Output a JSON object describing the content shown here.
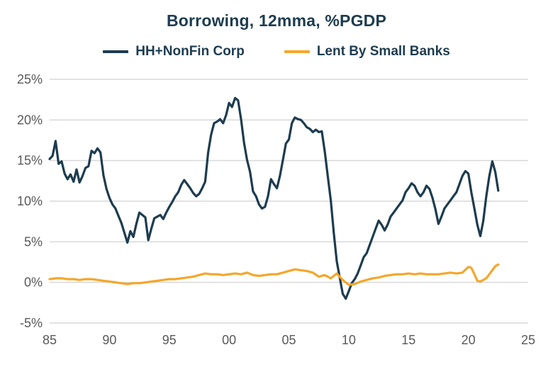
{
  "chart_data": {
    "type": "line",
    "title": "Borrowing, 12mma, %PGDP",
    "xlabel": "",
    "ylabel": "",
    "xlim": [
      1985,
      2025
    ],
    "ylim": [
      -5,
      25
    ],
    "grid": "horizontal",
    "legend_position": "top",
    "colors": {
      "hh": "#1d3c4f",
      "small_banks": "#f5a62a",
      "grid": "#d9d9d9",
      "tick_text": "#595959",
      "title_text": "#1d3c4f"
    },
    "x_ticks": [
      {
        "value": 1985,
        "label": "85"
      },
      {
        "value": 1990,
        "label": "90"
      },
      {
        "value": 1995,
        "label": "95"
      },
      {
        "value": 2000,
        "label": "00"
      },
      {
        "value": 2005,
        "label": "05"
      },
      {
        "value": 2010,
        "label": "10"
      },
      {
        "value": 2015,
        "label": "15"
      },
      {
        "value": 2020,
        "label": "20"
      },
      {
        "value": 2025,
        "label": "25"
      }
    ],
    "y_ticks": [
      {
        "value": -5,
        "label": "-5%"
      },
      {
        "value": 0,
        "label": "0%"
      },
      {
        "value": 5,
        "label": "5%"
      },
      {
        "value": 10,
        "label": "10%"
      },
      {
        "value": 15,
        "label": "15%"
      },
      {
        "value": 20,
        "label": "20%"
      },
      {
        "value": 25,
        "label": "25%"
      }
    ],
    "series": [
      {
        "name": "HH+NonFin Corp",
        "color_key": "hh",
        "points": [
          [
            1985.0,
            15.2
          ],
          [
            1985.25,
            15.6
          ],
          [
            1985.5,
            17.4
          ],
          [
            1985.75,
            14.6
          ],
          [
            1986.0,
            14.9
          ],
          [
            1986.25,
            13.4
          ],
          [
            1986.5,
            12.7
          ],
          [
            1986.75,
            13.3
          ],
          [
            1987.0,
            12.4
          ],
          [
            1987.25,
            13.9
          ],
          [
            1987.5,
            12.3
          ],
          [
            1987.75,
            13.1
          ],
          [
            1988.0,
            14.1
          ],
          [
            1988.25,
            14.3
          ],
          [
            1988.5,
            16.2
          ],
          [
            1988.75,
            15.9
          ],
          [
            1989.0,
            16.5
          ],
          [
            1989.25,
            16.0
          ],
          [
            1989.5,
            13.2
          ],
          [
            1989.75,
            11.5
          ],
          [
            1990.0,
            10.4
          ],
          [
            1990.25,
            9.6
          ],
          [
            1990.5,
            9.1
          ],
          [
            1990.75,
            8.2
          ],
          [
            1991.0,
            7.3
          ],
          [
            1991.25,
            6.1
          ],
          [
            1991.5,
            4.9
          ],
          [
            1991.75,
            6.3
          ],
          [
            1992.0,
            5.6
          ],
          [
            1992.25,
            7.2
          ],
          [
            1992.5,
            8.6
          ],
          [
            1992.75,
            8.3
          ],
          [
            1993.0,
            8.0
          ],
          [
            1993.25,
            5.2
          ],
          [
            1993.5,
            6.6
          ],
          [
            1993.75,
            7.9
          ],
          [
            1994.0,
            8.1
          ],
          [
            1994.25,
            8.3
          ],
          [
            1994.5,
            7.8
          ],
          [
            1994.75,
            8.6
          ],
          [
            1995.0,
            9.3
          ],
          [
            1995.25,
            9.9
          ],
          [
            1995.5,
            10.6
          ],
          [
            1995.75,
            11.1
          ],
          [
            1996.0,
            12.0
          ],
          [
            1996.25,
            12.6
          ],
          [
            1996.5,
            12.1
          ],
          [
            1996.75,
            11.6
          ],
          [
            1997.0,
            11.0
          ],
          [
            1997.25,
            10.6
          ],
          [
            1997.5,
            10.9
          ],
          [
            1997.75,
            11.6
          ],
          [
            1998.0,
            12.4
          ],
          [
            1998.25,
            16.0
          ],
          [
            1998.5,
            18.2
          ],
          [
            1998.75,
            19.6
          ],
          [
            1999.0,
            19.8
          ],
          [
            1999.25,
            20.1
          ],
          [
            1999.5,
            19.6
          ],
          [
            1999.75,
            20.6
          ],
          [
            2000.0,
            22.1
          ],
          [
            2000.25,
            21.6
          ],
          [
            2000.5,
            22.7
          ],
          [
            2000.75,
            22.4
          ],
          [
            2001.0,
            20.1
          ],
          [
            2001.25,
            17.2
          ],
          [
            2001.5,
            15.1
          ],
          [
            2001.75,
            13.6
          ],
          [
            2002.0,
            11.2
          ],
          [
            2002.25,
            10.6
          ],
          [
            2002.5,
            9.6
          ],
          [
            2002.75,
            9.1
          ],
          [
            2003.0,
            9.3
          ],
          [
            2003.25,
            10.6
          ],
          [
            2003.5,
            12.7
          ],
          [
            2003.75,
            12.1
          ],
          [
            2004.0,
            11.6
          ],
          [
            2004.25,
            13.1
          ],
          [
            2004.5,
            15.1
          ],
          [
            2004.75,
            17.1
          ],
          [
            2005.0,
            17.6
          ],
          [
            2005.25,
            19.6
          ],
          [
            2005.5,
            20.3
          ],
          [
            2005.75,
            20.1
          ],
          [
            2006.0,
            20.0
          ],
          [
            2006.25,
            19.6
          ],
          [
            2006.5,
            19.1
          ],
          [
            2006.75,
            18.9
          ],
          [
            2007.0,
            18.5
          ],
          [
            2007.25,
            18.8
          ],
          [
            2007.5,
            18.5
          ],
          [
            2007.75,
            18.6
          ],
          [
            2008.0,
            16.1
          ],
          [
            2008.25,
            13.1
          ],
          [
            2008.5,
            10.1
          ],
          [
            2008.75,
            6.1
          ],
          [
            2009.0,
            2.6
          ],
          [
            2009.25,
            0.6
          ],
          [
            2009.5,
            -1.4
          ],
          [
            2009.75,
            -2.0
          ],
          [
            2010.0,
            -1.1
          ],
          [
            2010.25,
            -0.1
          ],
          [
            2010.5,
            0.4
          ],
          [
            2010.75,
            1.1
          ],
          [
            2011.0,
            2.1
          ],
          [
            2011.25,
            3.1
          ],
          [
            2011.5,
            3.6
          ],
          [
            2011.75,
            4.6
          ],
          [
            2012.0,
            5.6
          ],
          [
            2012.25,
            6.6
          ],
          [
            2012.5,
            7.6
          ],
          [
            2012.75,
            7.1
          ],
          [
            2013.0,
            6.4
          ],
          [
            2013.25,
            7.1
          ],
          [
            2013.5,
            8.1
          ],
          [
            2013.75,
            8.6
          ],
          [
            2014.0,
            9.1
          ],
          [
            2014.25,
            9.6
          ],
          [
            2014.5,
            10.1
          ],
          [
            2014.75,
            11.1
          ],
          [
            2015.0,
            11.6
          ],
          [
            2015.25,
            12.2
          ],
          [
            2015.5,
            11.9
          ],
          [
            2015.75,
            11.1
          ],
          [
            2016.0,
            10.6
          ],
          [
            2016.25,
            11.1
          ],
          [
            2016.5,
            11.9
          ],
          [
            2016.75,
            11.5
          ],
          [
            2017.0,
            10.4
          ],
          [
            2017.25,
            9.0
          ],
          [
            2017.5,
            7.2
          ],
          [
            2017.75,
            8.1
          ],
          [
            2018.0,
            9.1
          ],
          [
            2018.25,
            9.6
          ],
          [
            2018.5,
            10.1
          ],
          [
            2018.75,
            10.6
          ],
          [
            2019.0,
            11.1
          ],
          [
            2019.25,
            12.1
          ],
          [
            2019.5,
            13.1
          ],
          [
            2019.75,
            13.7
          ],
          [
            2020.0,
            13.4
          ],
          [
            2020.25,
            11.1
          ],
          [
            2020.5,
            9.1
          ],
          [
            2020.75,
            7.1
          ],
          [
            2021.0,
            5.7
          ],
          [
            2021.25,
            7.6
          ],
          [
            2021.5,
            10.6
          ],
          [
            2021.75,
            13.1
          ],
          [
            2022.0,
            14.9
          ],
          [
            2022.25,
            13.6
          ],
          [
            2022.5,
            11.3
          ]
        ]
      },
      {
        "name": "Lent By Small Banks",
        "color_key": "small_banks",
        "points": [
          [
            1985.0,
            0.4
          ],
          [
            1985.5,
            0.5
          ],
          [
            1986.0,
            0.5
          ],
          [
            1986.5,
            0.4
          ],
          [
            1987.0,
            0.4
          ],
          [
            1987.5,
            0.3
          ],
          [
            1988.0,
            0.4
          ],
          [
            1988.5,
            0.4
          ],
          [
            1989.0,
            0.3
          ],
          [
            1989.5,
            0.2
          ],
          [
            1990.0,
            0.1
          ],
          [
            1990.5,
            0.0
          ],
          [
            1991.0,
            -0.1
          ],
          [
            1991.5,
            -0.2
          ],
          [
            1992.0,
            -0.1
          ],
          [
            1992.5,
            -0.1
          ],
          [
            1993.0,
            0.0
          ],
          [
            1993.5,
            0.1
          ],
          [
            1994.0,
            0.2
          ],
          [
            1994.5,
            0.3
          ],
          [
            1995.0,
            0.4
          ],
          [
            1995.5,
            0.4
          ],
          [
            1996.0,
            0.5
          ],
          [
            1996.5,
            0.6
          ],
          [
            1997.0,
            0.7
          ],
          [
            1997.5,
            0.9
          ],
          [
            1998.0,
            1.1
          ],
          [
            1998.5,
            1.0
          ],
          [
            1999.0,
            1.0
          ],
          [
            1999.5,
            0.9
          ],
          [
            2000.0,
            1.0
          ],
          [
            2000.5,
            1.1
          ],
          [
            2001.0,
            1.0
          ],
          [
            2001.5,
            1.2
          ],
          [
            2002.0,
            0.9
          ],
          [
            2002.5,
            0.8
          ],
          [
            2003.0,
            0.9
          ],
          [
            2003.5,
            1.0
          ],
          [
            2004.0,
            1.0
          ],
          [
            2004.5,
            1.2
          ],
          [
            2005.0,
            1.4
          ],
          [
            2005.5,
            1.6
          ],
          [
            2006.0,
            1.5
          ],
          [
            2006.5,
            1.4
          ],
          [
            2007.0,
            1.2
          ],
          [
            2007.5,
            0.7
          ],
          [
            2008.0,
            0.9
          ],
          [
            2008.5,
            0.5
          ],
          [
            2009.0,
            1.1
          ],
          [
            2009.5,
            0.3
          ],
          [
            2010.0,
            -0.3
          ],
          [
            2010.5,
            -0.2
          ],
          [
            2011.0,
            0.1
          ],
          [
            2011.5,
            0.3
          ],
          [
            2012.0,
            0.5
          ],
          [
            2012.5,
            0.6
          ],
          [
            2013.0,
            0.8
          ],
          [
            2013.5,
            0.9
          ],
          [
            2014.0,
            1.0
          ],
          [
            2014.5,
            1.0
          ],
          [
            2015.0,
            1.1
          ],
          [
            2015.5,
            1.0
          ],
          [
            2016.0,
            1.1
          ],
          [
            2016.5,
            1.0
          ],
          [
            2017.0,
            1.0
          ],
          [
            2017.5,
            1.0
          ],
          [
            2018.0,
            1.1
          ],
          [
            2018.5,
            1.2
          ],
          [
            2019.0,
            1.1
          ],
          [
            2019.5,
            1.2
          ],
          [
            2020.0,
            1.9
          ],
          [
            2020.25,
            1.8
          ],
          [
            2020.5,
            1.0
          ],
          [
            2020.75,
            0.2
          ],
          [
            2021.0,
            0.1
          ],
          [
            2021.25,
            0.3
          ],
          [
            2021.5,
            0.5
          ],
          [
            2021.75,
            1.0
          ],
          [
            2022.0,
            1.5
          ],
          [
            2022.25,
            2.0
          ],
          [
            2022.5,
            2.2
          ]
        ]
      }
    ]
  }
}
